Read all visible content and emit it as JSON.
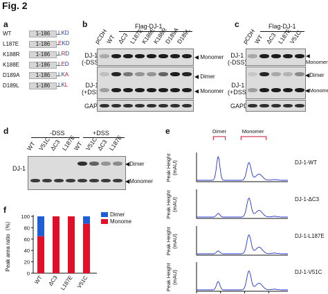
{
  "figure_title": "Fig. 2",
  "panel_a": {
    "label": "a",
    "rows": [
      {
        "name": "WT",
        "range": "1-186",
        "prefix": "L",
        "mut": "",
        "suffix": "KD",
        "seq": "LKD"
      },
      {
        "name": "L187E",
        "range": "1-186",
        "prefix": "",
        "mut": "E",
        "suffix": "KD",
        "seq": "EKD"
      },
      {
        "name": "K188R",
        "range": "1-186",
        "prefix": "L",
        "mut": "R",
        "suffix": "D",
        "seq": "LRD"
      },
      {
        "name": "K188E",
        "range": "1-186",
        "prefix": "L",
        "mut": "E",
        "suffix": "D",
        "seq": "LED"
      },
      {
        "name": "D189A",
        "range": "1-186",
        "prefix": "LK",
        "mut": "A",
        "suffix": "",
        "seq": "LKA"
      },
      {
        "name": "D189L",
        "range": "1-186",
        "prefix": "LK",
        "mut": "L",
        "suffix": "",
        "seq": "LKL"
      }
    ],
    "mut_color": "#c8102e",
    "seq_color": "#1f3f9a"
  },
  "panel_b": {
    "label": "b",
    "group_label": "Flag-DJ-1",
    "lanes": [
      "pCDH",
      "WT",
      "ΔC3",
      "L187E",
      "K188E",
      "K188R",
      "D189A",
      "D189L"
    ],
    "row_labels": {
      "minus_dss": "DJ-1\n(-DSS)",
      "plus_dss": "DJ-1\n(+DSS)",
      "gapdh": "GAPDH"
    },
    "markers": {
      "monomer": "Monomer",
      "dimer": "Dimer"
    }
  },
  "panel_c": {
    "label": "c",
    "group_label": "Flag-DJ-1",
    "lanes": [
      "pCDH",
      "WT",
      "ΔC3",
      "L187E",
      "V51C"
    ],
    "row_labels": {
      "minus_dss": "DJ-1\n(-DSS)",
      "plus_dss": "DJ-1\n(+DSS)",
      "gapdh": "GAPDH"
    },
    "markers": {
      "monomer": "Monomer",
      "dimer": "Dimer"
    }
  },
  "panel_d": {
    "label": "d",
    "group_minus": "-DSS",
    "group_plus": "+DSS",
    "lanes": [
      "WT",
      "V51C",
      "ΔC3",
      "L187E",
      "WT",
      "V51C",
      "ΔC3",
      "L187E"
    ],
    "row_label": "DJ-1",
    "markers": {
      "dimer": "Dimer",
      "monomer": "Monomer"
    }
  },
  "panel_e": {
    "label": "e",
    "bracket_dimer": "Dimer",
    "bracket_monomer": "Monomer",
    "ylabel": "Peak Height\n(mAU)",
    "x_ticks": [
      "3",
      "4",
      "5",
      "6"
    ],
    "x_unit": "min",
    "traces": [
      {
        "name": "DJ-1-WT",
        "dimer_peak": 1.0,
        "monomer_peak": 0.75
      },
      {
        "name": "DJ-1-ΔC3",
        "dimer_peak": 0.15,
        "monomer_peak": 0.8
      },
      {
        "name": "DJ-1-L187E",
        "dimer_peak": 0.12,
        "monomer_peak": 0.8
      },
      {
        "name": "DJ-1-V51C",
        "dimer_peak": 0.35,
        "monomer_peak": 0.8
      }
    ],
    "line_color": "#2233cc",
    "bracket_color": "#c8102e"
  },
  "panel_f": {
    "label": "f",
    "ylabel": "Peak area ratio（%）",
    "legend": [
      {
        "name": "Dimer",
        "color": "#1f5fd6"
      },
      {
        "name": "Monomer",
        "color": "#e0102a"
      }
    ]
  },
  "chart_data": {
    "type": "bar",
    "stacked": true,
    "categories": [
      "WT",
      "ΔC3",
      "L187E",
      "V51C"
    ],
    "series": [
      {
        "name": "Monomer",
        "values": [
          65,
          100,
          100,
          87
        ]
      },
      {
        "name": "Dimer",
        "values": [
          35,
          0,
          0,
          13
        ]
      }
    ],
    "ylabel": "Peak area ratio（%）",
    "ylim": [
      0,
      100
    ],
    "yticks": [
      "0",
      "20",
      "40",
      "60",
      "80",
      "100"
    ],
    "legend_position": "top-right"
  }
}
